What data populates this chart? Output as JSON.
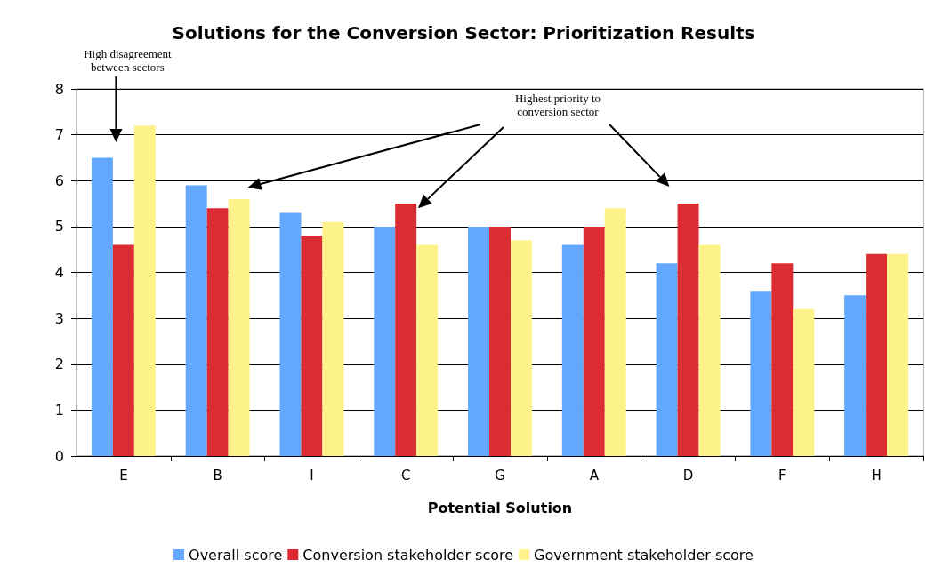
{
  "chart_data": {
    "type": "bar",
    "title": "Solutions for the Conversion Sector: Prioritization Results",
    "xlabel": "Potential Solution",
    "categories": [
      "E",
      "B",
      "I",
      "C",
      "G",
      "A",
      "D",
      "F",
      "H"
    ],
    "series": [
      {
        "name": "Overall score",
        "color": "#63a8fc",
        "values": [
          6.5,
          5.9,
          5.3,
          5.0,
          5.0,
          4.6,
          4.2,
          3.6,
          3.5
        ]
      },
      {
        "name": "Conversion stakeholder score",
        "color": "#dc2c33",
        "values": [
          4.6,
          5.4,
          4.8,
          5.5,
          5.0,
          5.0,
          5.5,
          4.2,
          4.4
        ]
      },
      {
        "name": "Government stakeholder score",
        "color": "#fef38b",
        "values": [
          7.2,
          5.6,
          5.1,
          4.6,
          4.7,
          5.4,
          4.6,
          3.2,
          4.4
        ]
      }
    ],
    "ylim": [
      0,
      8
    ],
    "yticks": [
      0,
      1,
      2,
      3,
      4,
      5,
      6,
      7,
      8
    ],
    "grid": "y",
    "legend": "bottom",
    "annotations": [
      "High disagreement between sectors",
      "Highest priority to conversion sector"
    ]
  }
}
